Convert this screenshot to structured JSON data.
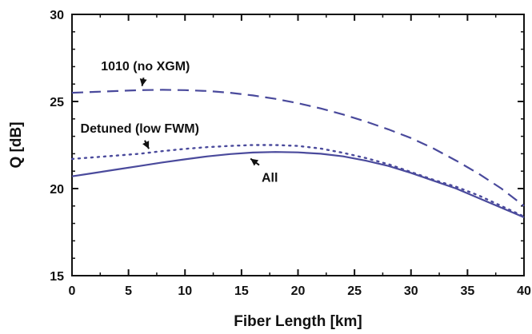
{
  "chart_data": {
    "type": "line",
    "title": "",
    "xlabel": "Fiber Length [km]",
    "ylabel": "Q [dB]",
    "xlim": [
      0,
      40
    ],
    "ylim": [
      15,
      30
    ],
    "xticks": [
      0,
      5,
      10,
      15,
      20,
      25,
      30,
      35,
      40
    ],
    "yticks": [
      15,
      20,
      25,
      30
    ],
    "x_tick_labels": [
      "0",
      "5",
      "10",
      "15",
      "20",
      "25",
      "30",
      "35",
      "40"
    ],
    "y_tick_labels": [
      "15",
      "20",
      "25",
      "30"
    ],
    "grid": false,
    "legend": "none",
    "series": [
      {
        "name": "1010 (no XGM)",
        "style": "dashed",
        "color": "#4a4a9c",
        "x": [
          0,
          2,
          4,
          6,
          8,
          10,
          12,
          14,
          16,
          18,
          20,
          22,
          24,
          26,
          28,
          30,
          32,
          34,
          36,
          38,
          40
        ],
        "y": [
          25.5,
          25.55,
          25.6,
          25.65,
          25.67,
          25.65,
          25.6,
          25.5,
          25.35,
          25.15,
          24.9,
          24.6,
          24.25,
          23.85,
          23.4,
          22.9,
          22.3,
          21.6,
          20.85,
          20.0,
          19.0
        ]
      },
      {
        "name": "Detuned (low FWM)",
        "style": "dotted",
        "color": "#4a4a9c",
        "x": [
          0,
          2,
          4,
          6,
          8,
          10,
          12,
          14,
          16,
          18,
          20,
          22,
          24,
          26,
          28,
          30,
          32,
          34,
          36,
          38,
          40
        ],
        "y": [
          21.7,
          21.8,
          21.9,
          22.0,
          22.15,
          22.28,
          22.38,
          22.45,
          22.5,
          22.5,
          22.45,
          22.3,
          22.05,
          21.75,
          21.4,
          20.95,
          20.5,
          20.1,
          19.6,
          19.0,
          18.4
        ]
      },
      {
        "name": "All",
        "style": "solid",
        "color": "#4a4a9c",
        "x": [
          0,
          2,
          4,
          6,
          8,
          10,
          12,
          14,
          16,
          18,
          20,
          22,
          24,
          26,
          28,
          30,
          32,
          34,
          36,
          38,
          40
        ],
        "y": [
          20.7,
          20.9,
          21.1,
          21.3,
          21.5,
          21.68,
          21.85,
          21.98,
          22.07,
          22.1,
          22.08,
          22.0,
          21.85,
          21.6,
          21.3,
          20.9,
          20.45,
          20.0,
          19.45,
          18.9,
          18.35
        ]
      }
    ],
    "annotations": [
      {
        "text": "1010 (no XGM)",
        "x": 6.5,
        "y": 26.8,
        "arrow_to_x": 6.2,
        "arrow_to_y": 25.7
      },
      {
        "text": "Detuned (low FWM)",
        "x": 6.0,
        "y": 23.2,
        "arrow_to_x": 6.8,
        "arrow_to_y": 22.1
      },
      {
        "text": "All",
        "x": 17.5,
        "y": 20.4,
        "arrow_to_x": 15.8,
        "arrow_to_y": 21.9
      }
    ]
  }
}
